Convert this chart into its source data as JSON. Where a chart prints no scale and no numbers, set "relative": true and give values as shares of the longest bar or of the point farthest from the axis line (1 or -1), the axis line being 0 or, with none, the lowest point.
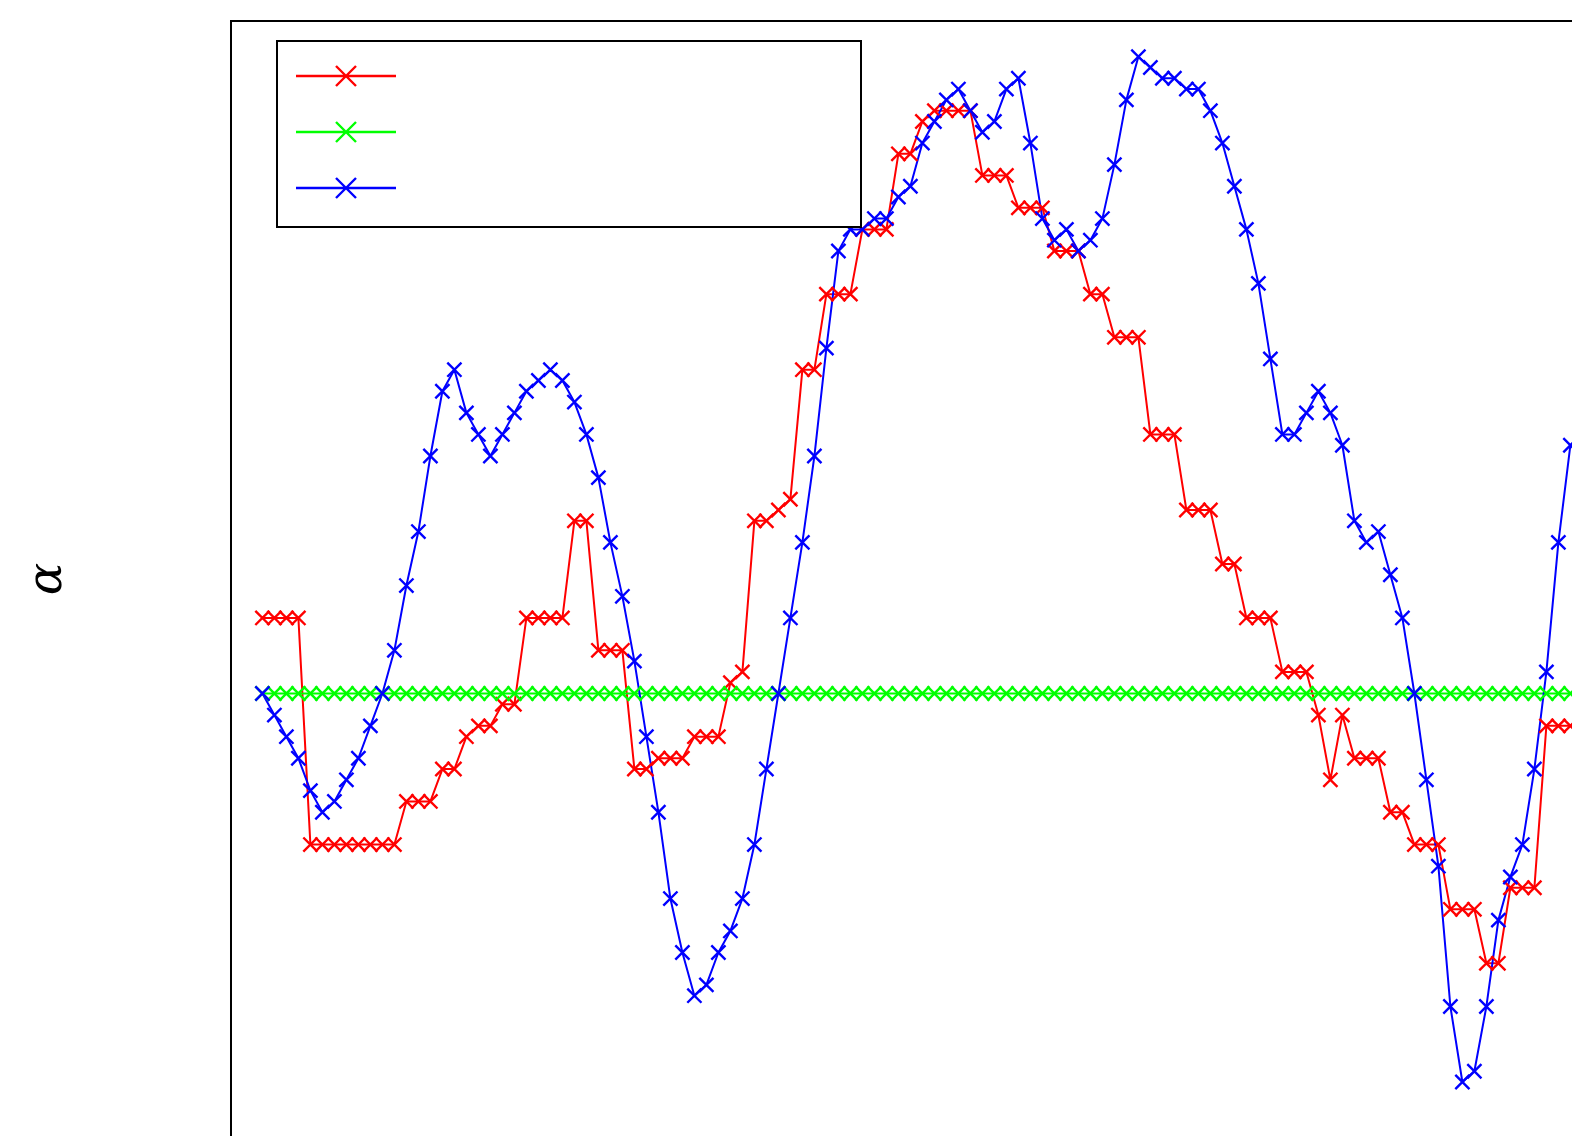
{
  "chart_data": {
    "type": "line",
    "ylabel": "α",
    "relative": true,
    "marker": "cross",
    "line_style": "solid",
    "categories": [
      null,
      null,
      null,
      null,
      null,
      null,
      null,
      null,
      null,
      null,
      null,
      null,
      null,
      null,
      null,
      null,
      null,
      null,
      null,
      null,
      null,
      null,
      null,
      null,
      null,
      null,
      null,
      null,
      null,
      null,
      null,
      null,
      null,
      null,
      null,
      null,
      null,
      null,
      null,
      null,
      null,
      null,
      null,
      null,
      null,
      null,
      null,
      null,
      null,
      null,
      null,
      null,
      null,
      null,
      null,
      null,
      null,
      null,
      null,
      null,
      null,
      null,
      null,
      null,
      null,
      null,
      null,
      null,
      null,
      null,
      null,
      null,
      null,
      null,
      null,
      null,
      null,
      null,
      null,
      null,
      null,
      null,
      null,
      null,
      null,
      null,
      null,
      null,
      null,
      null,
      null,
      null,
      null,
      null,
      null,
      null,
      null,
      null,
      null,
      null,
      null,
      null,
      null,
      null,
      null,
      null,
      null,
      null,
      null,
      null
    ],
    "series": [
      {
        "color": "#ff0000",
        "values": [
          0.48,
          0.48,
          0.48,
          0.48,
          0.27,
          0.27,
          0.27,
          0.27,
          0.27,
          0.27,
          0.27,
          0.27,
          0.31,
          0.31,
          0.31,
          0.34,
          0.34,
          0.37,
          0.38,
          0.38,
          0.4,
          0.4,
          0.48,
          0.48,
          0.48,
          0.48,
          0.57,
          0.57,
          0.45,
          0.45,
          0.45,
          0.34,
          0.34,
          0.35,
          0.35,
          0.35,
          0.37,
          0.37,
          0.37,
          0.42,
          0.43,
          0.57,
          0.57,
          0.58,
          0.59,
          0.71,
          0.71,
          0.78,
          0.78,
          0.78,
          0.84,
          0.84,
          0.84,
          0.91,
          0.91,
          0.94,
          0.95,
          0.95,
          0.95,
          0.95,
          0.89,
          0.89,
          0.89,
          0.86,
          0.86,
          0.86,
          0.82,
          0.82,
          0.82,
          0.78,
          0.78,
          0.74,
          0.74,
          0.74,
          0.65,
          0.65,
          0.65,
          0.58,
          0.58,
          0.58,
          0.53,
          0.53,
          0.48,
          0.48,
          0.48,
          0.43,
          0.43,
          0.43,
          0.39,
          0.33,
          0.39,
          0.35,
          0.35,
          0.35,
          0.3,
          0.3,
          0.27,
          0.27,
          0.27,
          0.21,
          0.21,
          0.21,
          0.16,
          0.16,
          0.23,
          0.23,
          0.23,
          0.38,
          0.38,
          0.38
        ]
      },
      {
        "color": "#00ff00",
        "values": [
          0.41,
          0.41,
          0.41,
          0.41,
          0.41,
          0.41,
          0.41,
          0.41,
          0.41,
          0.41,
          0.41,
          0.41,
          0.41,
          0.41,
          0.41,
          0.41,
          0.41,
          0.41,
          0.41,
          0.41,
          0.41,
          0.41,
          0.41,
          0.41,
          0.41,
          0.41,
          0.41,
          0.41,
          0.41,
          0.41,
          0.41,
          0.41,
          0.41,
          0.41,
          0.41,
          0.41,
          0.41,
          0.41,
          0.41,
          0.41,
          0.41,
          0.41,
          0.41,
          0.41,
          0.41,
          0.41,
          0.41,
          0.41,
          0.41,
          0.41,
          0.41,
          0.41,
          0.41,
          0.41,
          0.41,
          0.41,
          0.41,
          0.41,
          0.41,
          0.41,
          0.41,
          0.41,
          0.41,
          0.41,
          0.41,
          0.41,
          0.41,
          0.41,
          0.41,
          0.41,
          0.41,
          0.41,
          0.41,
          0.41,
          0.41,
          0.41,
          0.41,
          0.41,
          0.41,
          0.41,
          0.41,
          0.41,
          0.41,
          0.41,
          0.41,
          0.41,
          0.41,
          0.41,
          0.41,
          0.41,
          0.41,
          0.41,
          0.41,
          0.41,
          0.41,
          0.41,
          0.41,
          0.41,
          0.41,
          0.41,
          0.41,
          0.41,
          0.41,
          0.41,
          0.41,
          0.41,
          0.41,
          0.41,
          0.41,
          0.41
        ]
      },
      {
        "color": "#0000ff",
        "values": [
          0.41,
          0.39,
          0.37,
          0.35,
          0.32,
          0.3,
          0.31,
          0.33,
          0.35,
          0.38,
          0.41,
          0.45,
          0.51,
          0.56,
          0.63,
          0.69,
          0.71,
          0.67,
          0.65,
          0.63,
          0.65,
          0.67,
          0.69,
          0.7,
          0.71,
          0.7,
          0.68,
          0.65,
          0.61,
          0.55,
          0.5,
          0.44,
          0.37,
          0.3,
          0.22,
          0.17,
          0.13,
          0.14,
          0.17,
          0.19,
          0.22,
          0.27,
          0.34,
          0.41,
          0.48,
          0.55,
          0.63,
          0.73,
          0.82,
          0.84,
          0.84,
          0.85,
          0.85,
          0.87,
          0.88,
          0.92,
          0.94,
          0.96,
          0.97,
          0.95,
          0.93,
          0.94,
          0.97,
          0.98,
          0.92,
          0.85,
          0.83,
          0.84,
          0.82,
          0.83,
          0.85,
          0.9,
          0.96,
          1.0,
          0.99,
          0.98,
          0.98,
          0.97,
          0.97,
          0.95,
          0.92,
          0.88,
          0.84,
          0.79,
          0.72,
          0.65,
          0.65,
          0.67,
          0.69,
          0.67,
          0.64,
          0.57,
          0.55,
          0.56,
          0.52,
          0.48,
          0.41,
          0.33,
          0.25,
          0.12,
          0.05,
          0.06,
          0.12,
          0.2,
          0.24,
          0.27,
          0.34,
          0.43,
          0.55,
          0.64
        ]
      }
    ]
  }
}
